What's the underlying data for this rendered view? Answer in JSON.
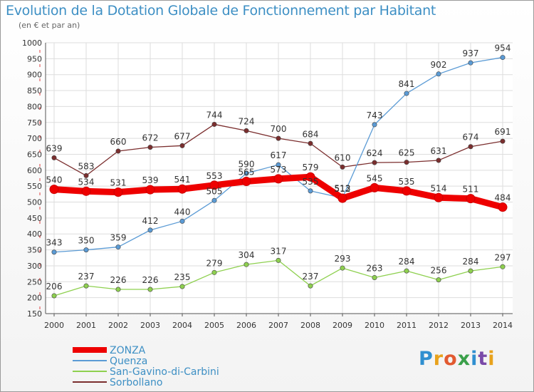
{
  "header": {
    "title": "Evolution de la Dotation Globale de Fonctionnement par Habitant",
    "subtitle": "(en € et par an)"
  },
  "logo": {
    "text": "Proxiti",
    "letters": [
      "P",
      "r",
      "o",
      "x",
      "i",
      "t",
      "i"
    ]
  },
  "chart_data": {
    "type": "line",
    "title": "Evolution de la Dotation Globale de Fonctionnement par Habitant",
    "subtitle": "(en € et par an)",
    "xlabel": "",
    "ylabel": "",
    "categories": [
      "2000",
      "2001",
      "2002",
      "2003",
      "2004",
      "2005",
      "2006",
      "2007",
      "2008",
      "2009",
      "2010",
      "2011",
      "2012",
      "2013",
      "2014"
    ],
    "ylim": [
      150,
      1000
    ],
    "yticks": [
      150,
      200,
      250,
      300,
      350,
      400,
      450,
      500,
      550,
      600,
      650,
      700,
      750,
      800,
      850,
      900,
      950,
      1000
    ],
    "grid": true,
    "legend_position": "bottom-left",
    "series": [
      {
        "name": "ZONZA",
        "color": "#ee0000",
        "values": [
          540,
          534,
          531,
          539,
          541,
          553,
          565,
          573,
          579,
          512,
          545,
          535,
          514,
          511,
          484
        ],
        "labels": [
          "540",
          "534",
          "531",
          "539",
          "541",
          "553",
          "565",
          "573",
          "579",
          "512",
          "545",
          "535",
          "514",
          "511",
          "484"
        ]
      },
      {
        "name": "Quenza",
        "color": "#5b9bd5",
        "values": [
          343,
          350,
          359,
          412,
          440,
          505,
          590,
          617,
          535,
          513,
          743,
          841,
          902,
          937,
          954
        ],
        "labels": [
          "343",
          "350",
          "359",
          "412",
          "440",
          "505",
          "590",
          "617",
          "535",
          "513",
          "743",
          "841",
          "902",
          "937",
          "954"
        ]
      },
      {
        "name": "San-Gavino-di-Carbini",
        "color": "#8ed04f",
        "values": [
          206,
          237,
          226,
          226,
          235,
          279,
          304,
          317,
          237,
          293,
          263,
          284,
          256,
          284,
          297
        ],
        "labels": [
          "206",
          "237",
          "226",
          "226",
          "235",
          "279",
          "304",
          "317",
          "237",
          "293",
          "263",
          "284",
          "256",
          "284",
          "297"
        ]
      },
      {
        "name": "Sorbollano",
        "color": "#7b2e2e",
        "values": [
          639,
          583,
          660,
          672,
          677,
          744,
          724,
          700,
          684,
          610,
          624,
          625,
          631,
          674,
          691
        ],
        "labels": [
          "639",
          "583",
          "660",
          "672",
          "677",
          "744",
          "724",
          "700",
          "684",
          "610",
          "624",
          "625",
          "631",
          "674",
          "691"
        ]
      }
    ]
  }
}
